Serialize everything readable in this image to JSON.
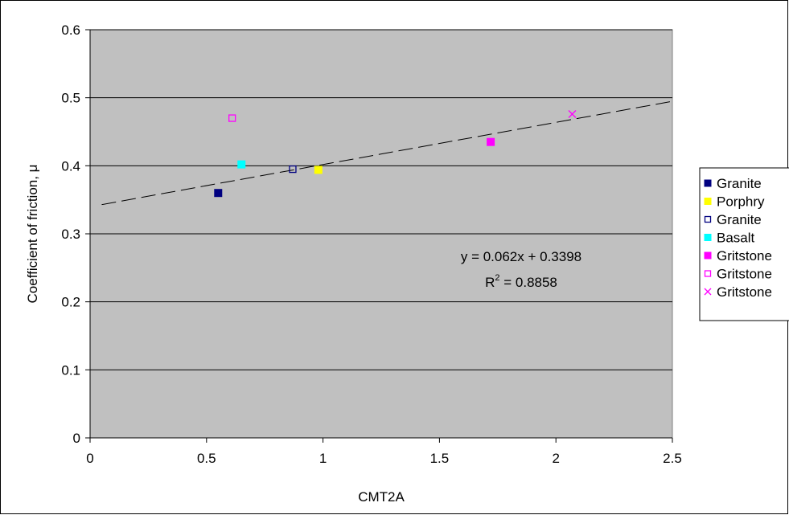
{
  "chart_data": {
    "type": "scatter",
    "title": "",
    "xlabel": "CMT2A",
    "ylabel": "Coefficient of friction, μ",
    "xlim": [
      0,
      2.5
    ],
    "ylim": [
      0,
      0.6
    ],
    "x_ticks": [
      "0",
      "0.5",
      "1",
      "1.5",
      "2",
      "2.5"
    ],
    "y_ticks": [
      "0",
      "0.1",
      "0.2",
      "0.3",
      "0.4",
      "0.5",
      "0.6"
    ],
    "x_tick_values": [
      0,
      0.5,
      1,
      1.5,
      2,
      2.5
    ],
    "y_tick_values": [
      0,
      0.1,
      0.2,
      0.3,
      0.4,
      0.5,
      0.6
    ],
    "grid": "horizontal",
    "plot_background": "#c0c0c0",
    "legend_position": "right",
    "series": [
      {
        "name": "Granite",
        "marker": "square-filled",
        "color": "#000080",
        "points": [
          [
            0.55,
            0.36
          ]
        ]
      },
      {
        "name": "Porphry",
        "marker": "square-filled",
        "color": "#ffff00",
        "points": [
          [
            0.98,
            0.394
          ]
        ]
      },
      {
        "name": "Granite",
        "marker": "square-open",
        "color": "#000080",
        "points": [
          [
            0.87,
            0.395
          ]
        ]
      },
      {
        "name": "Basalt",
        "marker": "square-filled",
        "color": "#00ffff",
        "points": [
          [
            0.65,
            0.402
          ]
        ]
      },
      {
        "name": "Gritstone",
        "marker": "square-filled",
        "color": "#ff00ff",
        "points": [
          [
            1.72,
            0.435
          ]
        ]
      },
      {
        "name": "Gritstone",
        "marker": "square-open",
        "color": "#ff00ff",
        "points": [
          [
            0.61,
            0.47
          ]
        ]
      },
      {
        "name": "Gritstone",
        "marker": "x",
        "color": "#ff00ff",
        "points": [
          [
            2.07,
            0.476
          ]
        ]
      }
    ],
    "trendline": {
      "style": "dashed",
      "color": "#000000",
      "slope": 0.062,
      "intercept": 0.3398,
      "x_range": [
        0.05,
        2.5
      ],
      "equation": "y = 0.062x + 0.3398",
      "r2_label": "R",
      "r2_sup": "2",
      "r2_value": " = 0.8858"
    }
  }
}
